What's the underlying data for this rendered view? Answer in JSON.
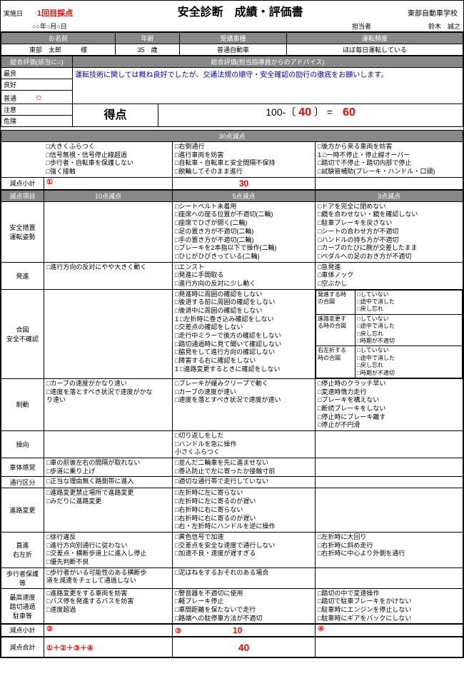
{
  "header": {
    "date_label": "実施日",
    "round": "1回目採点",
    "date_value": "○○年○月○日",
    "title": "安全診断　成績・評価書",
    "school": "東部自動車学校",
    "tantou_label": "担当者",
    "tantou_name": "鈴木　誠之"
  },
  "info": {
    "name_label": "お名前",
    "name": "東部　太郎",
    "name_suffix": "様",
    "age_label": "年齢",
    "age": "35",
    "age_suffix": "歳",
    "type_label": "受講車種",
    "type": "普通自動車",
    "freq_label": "運転頻度",
    "freq": "ほぼ毎日運転している"
  },
  "overall": {
    "eval_header": "総合評価(該当に○)",
    "advice_header": "総合評価(担当指導員からのアドバイス)",
    "advice": "運転技術に関しては概ね良好でしたが、交通法規の順守・安全確認の励行の徹底をお願いします。",
    "levels": [
      "最良",
      "良好",
      "普通",
      "注意",
      "危険"
    ],
    "circled_index": 2,
    "score_label": "得点",
    "score_formula_pre": "100-〔",
    "score_deduct": "40",
    "score_formula_mid": "〕 =",
    "score_result": "60"
  },
  "deduct30": {
    "header": "30点減点",
    "col1": [
      "□大きくふらつく",
      "□信号無視・信号停止線超過",
      "□歩行者・自転車を保護しない",
      "□強く接触"
    ],
    "col2": [
      "□右側通行",
      "□進行車両を妨害",
      "□自転車・自転車と安全間隔不保持",
      "□脱輪してそのまま進行"
    ],
    "col3_marked": 1,
    "col3": [
      "□後方から来る車両を妨害",
      "□一時不停止・停止線オーバー",
      "□踏切で不停止・踏切内部で停止",
      "□試験管補助(ブレーキ・ハンドル・口頭)"
    ],
    "subtotal_label": "減点小計",
    "subtotal_marker": "①",
    "subtotal": "30"
  },
  "cat_header": {
    "item": "減点項目",
    "c10": "10点減点",
    "c5": "5点減点",
    "c3": "3点減点"
  },
  "sections": [
    {
      "cat": "安全措置\n運転姿勢",
      "c10": [],
      "c5": [
        "□シートベルト未着用",
        "□座席への座る位置が不適切(二輪)",
        "□座席でひざが開く(二輪)",
        "□足の置き方が不適切(二輪)",
        "□手の置き方が不適切(二輪)",
        "□ブレーキを2本指以下で操作(二輪)",
        "□ひじがひびきっている(二輪)"
      ],
      "c3": [
        "□ドアを完全に閉めない",
        "□鏡を合わせない・鏡を確認しない",
        "□駐車ブレーキを戻さない",
        "□シートの合わせ方が不適切",
        "□ハンドルの持ち方が不適切",
        "□カーブのたびに腕が交差したまま",
        "□ペダルへの足のおき方が不適切"
      ]
    },
    {
      "cat": "発進",
      "c10": [
        "□進行方向の反対にやや大きく動く"
      ],
      "c5": [
        "□エンスト",
        "□発進に手間取る",
        "□進行方向の反対に少し動く"
      ],
      "c3": [
        "□急発進",
        "□車体ノック",
        "□空ぶかし"
      ]
    },
    {
      "cat": "合図\n安全不確認",
      "c10": [],
      "c5": [
        "□発進時に周囲の確認をしない",
        "□後退する前に周囲の確認をしない",
        "□後退中に周囲の確認をしない",
        "□左折時に巻き込み確認をしない",
        "□交差点の確認をしない",
        "□走行中ミラーで後方の確認をしない",
        "□踏切通過時に見て聞いて確認しない",
        "□脇見をして進行方向の確認しない",
        "□障害する右に確認をしない",
        "□進路変更するときに確認をしない"
      ],
      "c5_marks": {
        "3": "1",
        "9": "1"
      },
      "c3_sub": [
        {
          "label": "発進する時\nの合図",
          "items": [
            "□していない",
            "□途中で消した",
            "□戻し忘れ"
          ]
        },
        {
          "label": "進路変更す\nる時の合図",
          "items": [
            "□していない",
            "□途中で消した",
            "□戻し忘れ",
            "□時期が不適切"
          ]
        },
        {
          "label": "右左折する\n時の合図",
          "items": [
            "□していない",
            "□途中で消した",
            "□戻し忘れ",
            "□時期が不適切"
          ]
        }
      ]
    },
    {
      "cat": "制動",
      "c10": [
        "□カーブの速度がかなり速い",
        "□速度を落とすべき状況で速度がかな",
        "り速い"
      ],
      "c5": [
        "□ブレーキが緩みクリープで動く",
        "□カーブの速度が速い",
        "□速度を落とすべき状況で速度が速い"
      ],
      "c3": [
        "□停止時のクラッチ早い",
        "□変速時惰力走行",
        "□ブレーキを構えない",
        "□断続ブレーキをしない",
        "□停止時にブレーキ離す",
        "□停止が不円滑"
      ]
    },
    {
      "cat": "操向",
      "c10": [],
      "c5": [
        "□切り返しをした",
        "□ハンドルを急に操作",
        "小さくふらつく"
      ],
      "c3": []
    },
    {
      "cat": "車体感覚",
      "c10": [
        "□車の前後左右の間隔が取れない",
        "□歩道に乗り上げ"
      ],
      "c5": [
        "□並んだ二輪車を先に進ませない",
        "□巻込防止で左に寄ったか接触寸前"
      ],
      "c3": []
    },
    {
      "cat": "通行区分",
      "c10": [
        "□正当な理由無く路側帯に進入"
      ],
      "c5": [
        "□適切な通行帯で走行していない"
      ],
      "c3": []
    },
    {
      "cat": "進路変更",
      "c10": [
        "□進路変更禁止場所で進路変更",
        "□みだりに進路変更"
      ],
      "c5": [
        "□左折時に左に寄らない",
        "□左折時に左に寄るのが遅い",
        "□右折時に右に寄らない",
        "□右折時に右に寄るのが遅い",
        "□右・左折時にハンドルを逆に操作"
      ],
      "c3": []
    },
    {
      "cat": "直進\n右左折",
      "c10": [
        "□徐行違反",
        "□進行方向別通行に従わない",
        "□交差点・横断歩道上に進入し停止",
        "□優先判断不良"
      ],
      "c5": [
        "□黄色信号で加速",
        "□交差点を安全な速度で通行しない",
        "□加速不良・速度が遅すぎる"
      ],
      "c3": [
        "□左折時に大回り",
        "□右折時に斜め走行",
        "□右折時に中心より外側を通行"
      ]
    },
    {
      "cat": "歩行者保護\n等",
      "c10": [
        "□歩行者がいる可能性のある横断歩",
        "道を減速をチェして通過しない"
      ],
      "c5": [
        "□泥はねをするおそれのある場合"
      ],
      "c3": []
    },
    {
      "cat": "最高速度\n踏切通過\n駐車等",
      "c10": [
        "□進路変更をする車両を妨害",
        "□バス停を発進するバスを妨害",
        "□速度超過"
      ],
      "c5": [
        "□警音器を不適切に使用",
        "□軽ブレーキ停止",
        "□車間距離を保たないで走行",
        "□路端への駐停車方法が不適切"
      ],
      "c3": [
        "□踏切の中で変速操作",
        "□踏切で駐車ブレーキをかけない",
        "□駐車時にエンジンを停止しない",
        "□駐車時にギアをバックにしない"
      ]
    }
  ],
  "subtotals": {
    "label": "減点小計",
    "m2": "②",
    "m3": "③",
    "m4": "④",
    "v3": "10"
  },
  "total": {
    "label": "減点合計",
    "formula": "①＋②＋③＋④",
    "value": "40"
  }
}
